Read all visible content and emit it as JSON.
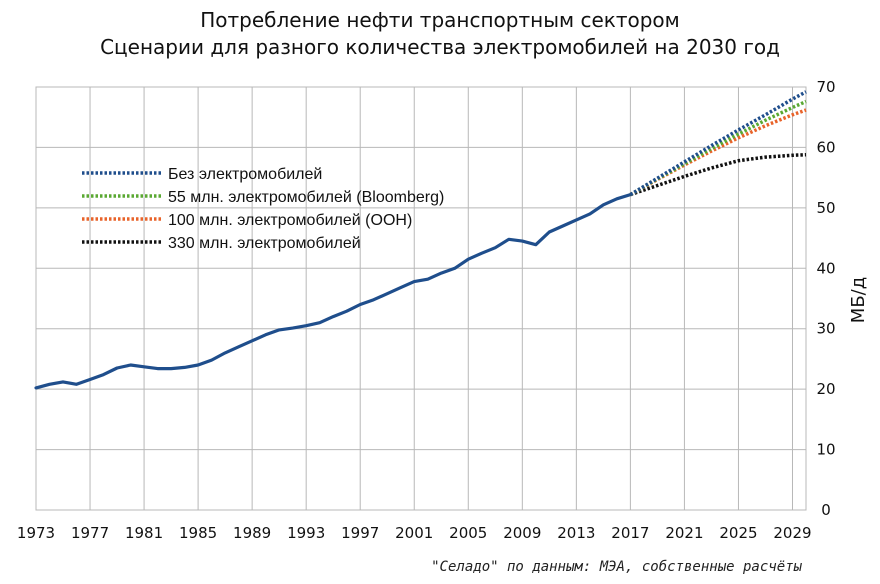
{
  "chart_data": {
    "type": "line",
    "title": "Потребление нефти транспортным сектором",
    "subtitle": "Сценарии для разного количества электромобилей на 2030 год",
    "xlabel": "",
    "ylabel": "МБ/д",
    "xlim": [
      1973,
      2030
    ],
    "ylim": [
      0,
      70
    ],
    "x_ticks": [
      "1973",
      "1977",
      "1981",
      "1985",
      "1989",
      "1993",
      "1997",
      "2001",
      "2005",
      "2009",
      "2013",
      "2017",
      "2021",
      "2025",
      "2029"
    ],
    "y_ticks": [
      "0",
      "10",
      "20",
      "30",
      "40",
      "50",
      "60",
      "70"
    ],
    "grid": true,
    "y_axis_side": "right",
    "legend_position": "upper-left",
    "colors": {
      "historical": "#1f4e8c",
      "no_ev": "#1f4e8c",
      "bloomberg": "#5aa832",
      "un": "#e8632a",
      "ev330": "#111111"
    },
    "historical": {
      "x": [
        1973,
        1974,
        1975,
        1976,
        1977,
        1978,
        1979,
        1980,
        1981,
        1982,
        1983,
        1984,
        1985,
        1986,
        1987,
        1988,
        1989,
        1990,
        1991,
        1992,
        1993,
        1994,
        1995,
        1996,
        1997,
        1998,
        1999,
        2000,
        2001,
        2002,
        2003,
        2004,
        2005,
        2006,
        2007,
        2008,
        2009,
        2010,
        2011,
        2012,
        2013,
        2014,
        2015,
        2016,
        2017
      ],
      "values": [
        20.2,
        20.8,
        21.2,
        20.8,
        21.6,
        22.4,
        23.5,
        24.0,
        23.7,
        23.4,
        23.4,
        23.6,
        24.0,
        24.8,
        26.0,
        27.0,
        28.0,
        29.0,
        29.8,
        30.1,
        30.5,
        31.0,
        32.0,
        32.9,
        34.0,
        34.8,
        35.8,
        36.8,
        37.8,
        38.2,
        39.2,
        40.0,
        41.5,
        42.5,
        43.4,
        44.8,
        44.5,
        43.9,
        46.0,
        47.0,
        48.0,
        49.0,
        50.5,
        51.5,
        52.2
      ]
    },
    "series": [
      {
        "name": "Без электромобилей",
        "x": [
          2017,
          2019,
          2021,
          2023,
          2025,
          2027,
          2029,
          2030
        ],
        "values": [
          52.2,
          54.9,
          57.6,
          60.3,
          62.9,
          65.4,
          68.0,
          69.2
        ]
      },
      {
        "name": "55 млн. электромобилей (Bloomberg)",
        "x": [
          2017,
          2019,
          2021,
          2023,
          2025,
          2027,
          2029,
          2030
        ],
        "values": [
          52.2,
          54.8,
          57.3,
          59.8,
          62.2,
          64.5,
          66.6,
          67.6
        ]
      },
      {
        "name": "100 млн. электромобилей (ООН)",
        "x": [
          2017,
          2019,
          2021,
          2023,
          2025,
          2027,
          2029,
          2030
        ],
        "values": [
          52.2,
          54.7,
          57.1,
          59.4,
          61.6,
          63.6,
          65.4,
          66.2
        ]
      },
      {
        "name": "330 млн. электромобилей",
        "x": [
          2017,
          2019,
          2021,
          2023,
          2025,
          2027,
          2029,
          2030
        ],
        "values": [
          52.2,
          53.7,
          55.2,
          56.6,
          57.8,
          58.4,
          58.7,
          58.8
        ]
      }
    ]
  },
  "source_note": "\"Селадо\" по данным: МЭА, собственные расчёты"
}
